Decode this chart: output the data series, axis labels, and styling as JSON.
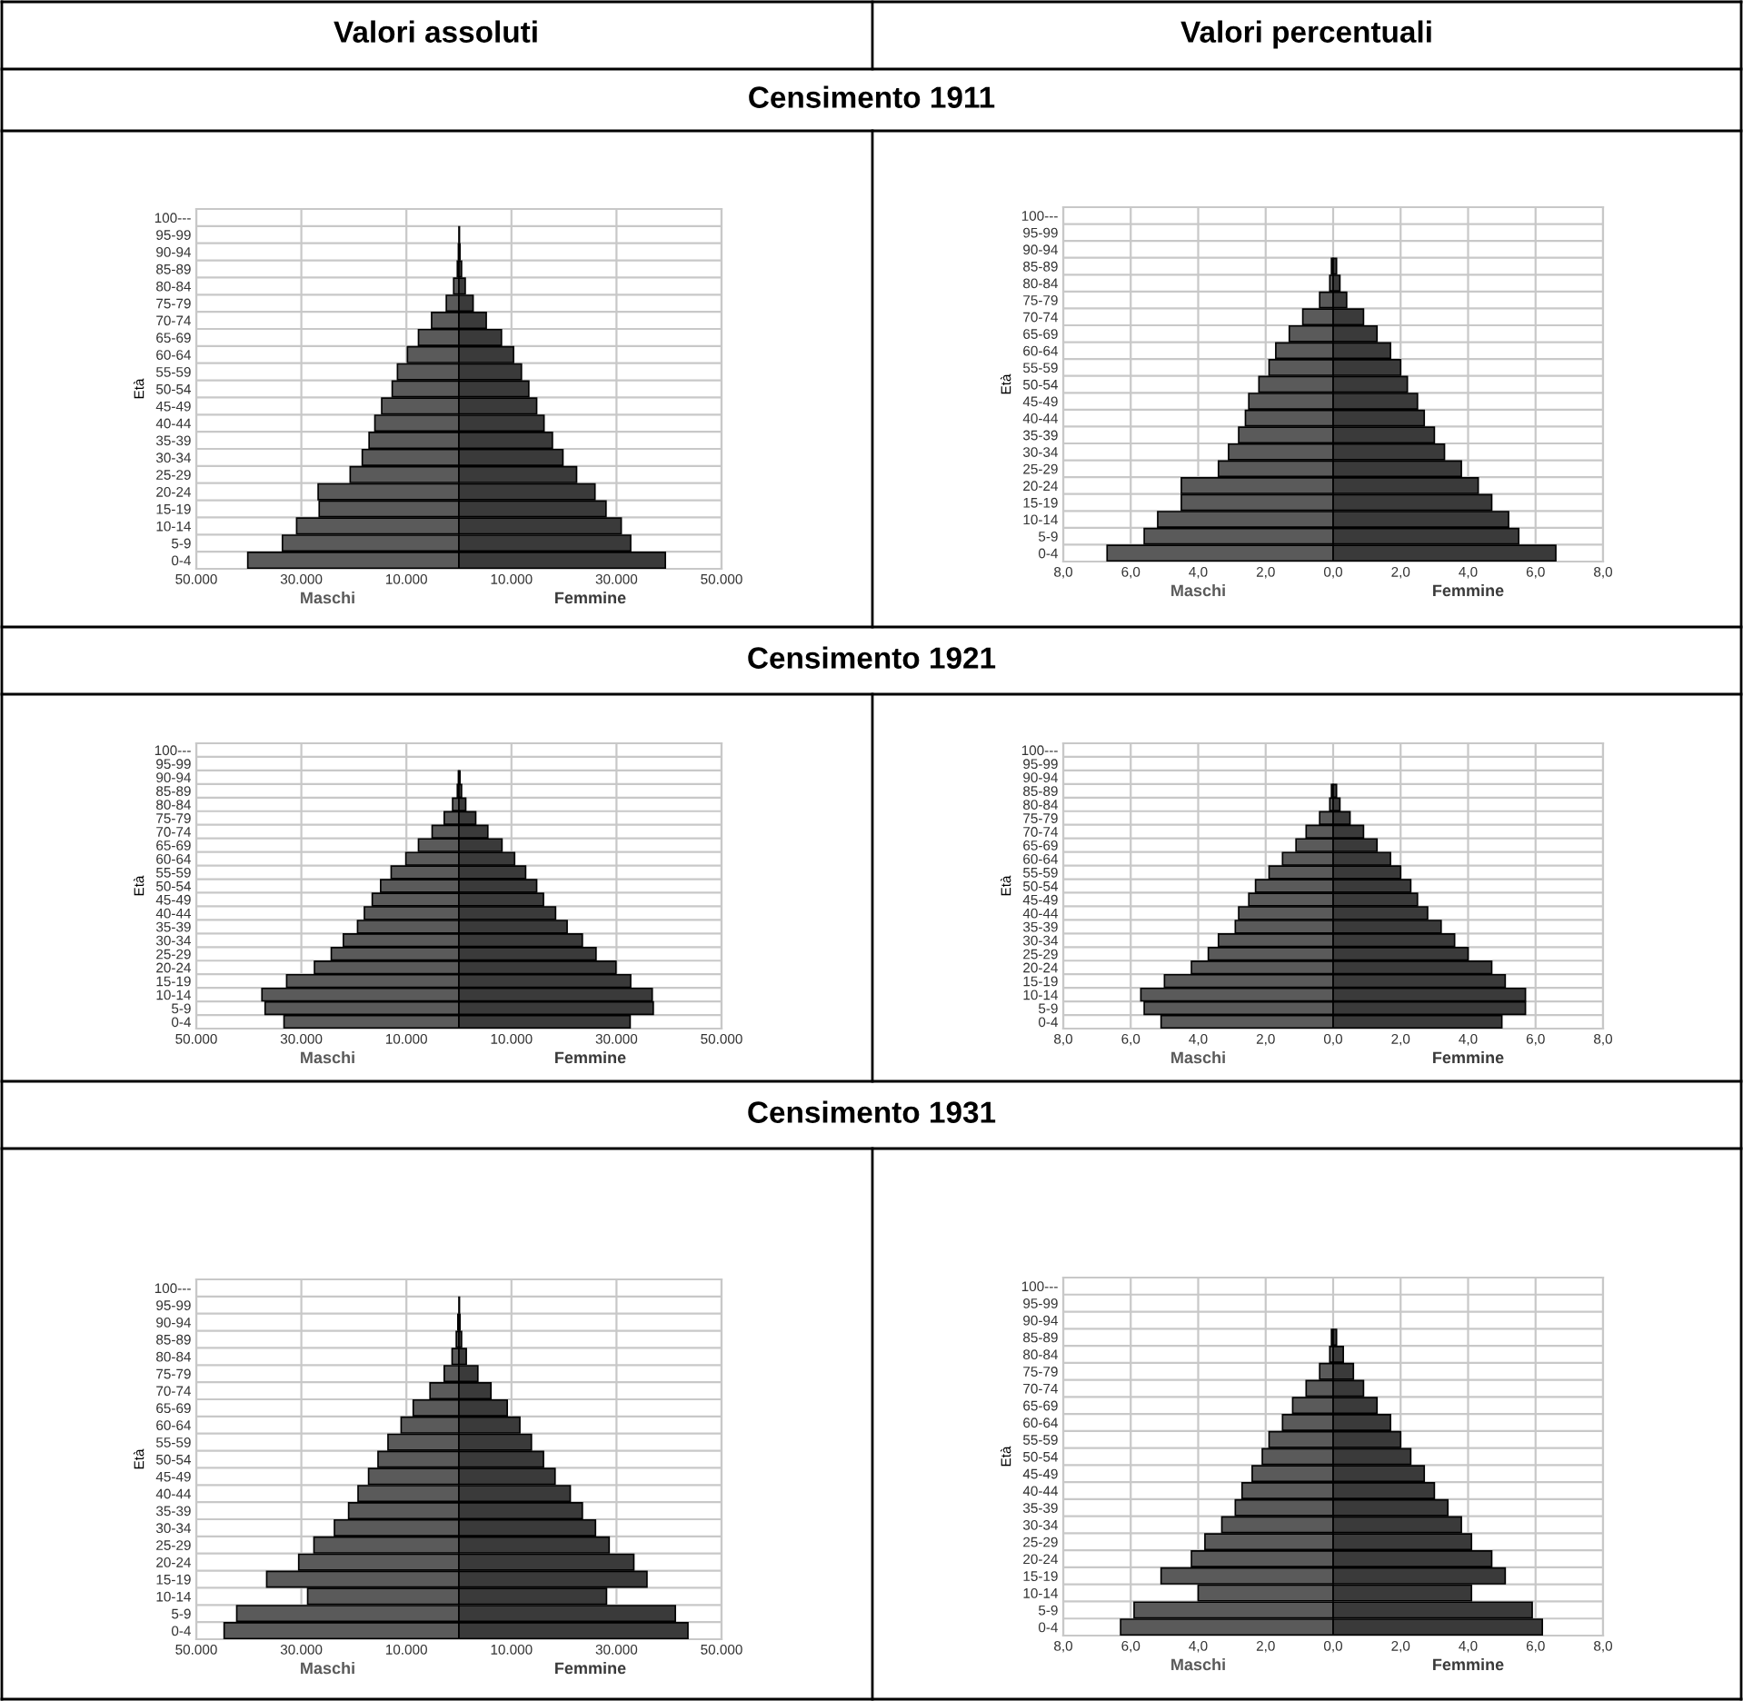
{
  "chart_data": [
    {
      "type": "bar",
      "orientation": "horizontal",
      "stacked": true,
      "subtitle": "Valori assoluti",
      "title": "Censimento 1911",
      "ylabel": "Età",
      "categories": [
        "100---",
        "95-99",
        "90-94",
        "85-89",
        "80-84",
        "75-79",
        "70-74",
        "65-69",
        "60-64",
        "55-59",
        "50-54",
        "45-49",
        "40-44",
        "35-39",
        "30-34",
        "25-29",
        "20-24",
        "15-19",
        "10-14",
        "5-9",
        "0-4"
      ],
      "series": [
        {
          "name": "Maschi",
          "color": "#5a5a5a",
          "values": [
            0,
            0,
            -100,
            -300,
            -1000,
            -2400,
            -5200,
            -7700,
            -9800,
            -11700,
            -12700,
            -14700,
            -16000,
            -17100,
            -18400,
            -20700,
            -26800,
            -26600,
            -30900,
            -33600,
            -40200
          ]
        },
        {
          "name": "Femmine",
          "color": "#3a3a3a",
          "values": [
            0,
            100,
            200,
            500,
            1200,
            2700,
            5200,
            8100,
            10400,
            11900,
            13300,
            14800,
            16200,
            17800,
            19800,
            22400,
            25900,
            28000,
            30900,
            32700,
            39300
          ]
        }
      ],
      "xlim": [
        -50000,
        50000
      ],
      "xticks": [
        {
          "value": -50000,
          "label": "50.000"
        },
        {
          "value": -30000,
          "label": "30.000"
        },
        {
          "value": -10000,
          "label": "10.000"
        },
        {
          "value": 10000,
          "label": "10.000"
        },
        {
          "value": 30000,
          "label": "30.000"
        },
        {
          "value": 50000,
          "label": "50.000"
        }
      ],
      "grid": true
    },
    {
      "type": "bar",
      "orientation": "horizontal",
      "stacked": true,
      "subtitle": "Valori percentuali",
      "ylabel": "Età",
      "categories": [
        "100---",
        "95-99",
        "90-94",
        "85-89",
        "80-84",
        "75-79",
        "70-74",
        "65-69",
        "60-64",
        "55-59",
        "50-54",
        "45-49",
        "40-44",
        "35-39",
        "30-34",
        "25-29",
        "20-24",
        "15-19",
        "10-14",
        "5-9",
        "0-4"
      ],
      "series": [
        {
          "name": "Maschi",
          "color": "#5a5a5a",
          "values": [
            0,
            0,
            0,
            -0.05,
            -0.1,
            -0.4,
            -0.9,
            -1.3,
            -1.7,
            -1.9,
            -2.2,
            -2.5,
            -2.6,
            -2.8,
            -3.1,
            -3.4,
            -4.5,
            -4.5,
            -5.2,
            -5.6,
            -6.7
          ]
        },
        {
          "name": "Femmine",
          "color": "#3a3a3a",
          "values": [
            0,
            0,
            0,
            0.1,
            0.2,
            0.4,
            0.9,
            1.3,
            1.7,
            2.0,
            2.2,
            2.5,
            2.7,
            3.0,
            3.3,
            3.8,
            4.3,
            4.7,
            5.2,
            5.5,
            6.6
          ]
        }
      ],
      "xlim": [
        -8,
        8
      ],
      "xticks": [
        {
          "value": -8,
          "label": "8,0"
        },
        {
          "value": -6,
          "label": "6,0"
        },
        {
          "value": -4,
          "label": "4,0"
        },
        {
          "value": -2,
          "label": "2,0"
        },
        {
          "value": 0,
          "label": "0,0"
        },
        {
          "value": 2,
          "label": "2,0"
        },
        {
          "value": 4,
          "label": "4,0"
        },
        {
          "value": 6,
          "label": "6,0"
        },
        {
          "value": 8,
          "label": "8,0"
        }
      ],
      "grid": true
    },
    {
      "type": "bar",
      "orientation": "horizontal",
      "stacked": true,
      "title": "Censimento 1921",
      "ylabel": "Età",
      "categories": [
        "100---",
        "95-99",
        "90-94",
        "85-89",
        "80-84",
        "75-79",
        "70-74",
        "65-69",
        "60-64",
        "55-59",
        "50-54",
        "45-49",
        "40-44",
        "35-39",
        "30-34",
        "25-29",
        "20-24",
        "15-19",
        "10-14",
        "5-9",
        "0-4"
      ],
      "series": [
        {
          "name": "Maschi",
          "color": "#5a5a5a",
          "values": [
            0,
            0,
            -100,
            -300,
            -1200,
            -2800,
            -5100,
            -7700,
            -10100,
            -12900,
            -14900,
            -16500,
            -18000,
            -19300,
            -22000,
            -24300,
            -27500,
            -32800,
            -37500,
            -36900,
            -33300
          ]
        },
        {
          "name": "Femmine",
          "color": "#3a3a3a",
          "values": [
            0,
            0,
            200,
            500,
            1300,
            3200,
            5500,
            8200,
            10600,
            12700,
            14800,
            16100,
            18400,
            20600,
            23500,
            26100,
            29900,
            32700,
            36800,
            37000,
            32600
          ]
        }
      ],
      "xlim": [
        -50000,
        50000
      ],
      "xticks": [
        {
          "value": -50000,
          "label": "50.000"
        },
        {
          "value": -30000,
          "label": "30.000"
        },
        {
          "value": -10000,
          "label": "10.000"
        },
        {
          "value": 10000,
          "label": "10.000"
        },
        {
          "value": 30000,
          "label": "30.000"
        },
        {
          "value": 50000,
          "label": "50.000"
        }
      ],
      "grid": true
    },
    {
      "type": "bar",
      "orientation": "horizontal",
      "stacked": true,
      "ylabel": "Età",
      "categories": [
        "100---",
        "95-99",
        "90-94",
        "85-89",
        "80-84",
        "75-79",
        "70-74",
        "65-69",
        "60-64",
        "55-59",
        "50-54",
        "45-49",
        "40-44",
        "35-39",
        "30-34",
        "25-29",
        "20-24",
        "15-19",
        "10-14",
        "5-9",
        "0-4"
      ],
      "series": [
        {
          "name": "Maschi",
          "color": "#5a5a5a",
          "values": [
            0,
            0,
            0,
            -0.05,
            -0.1,
            -0.4,
            -0.8,
            -1.1,
            -1.5,
            -1.9,
            -2.3,
            -2.5,
            -2.8,
            -2.9,
            -3.4,
            -3.7,
            -4.2,
            -5.0,
            -5.7,
            -5.6,
            -5.1
          ]
        },
        {
          "name": "Femmine",
          "color": "#3a3a3a",
          "values": [
            0,
            0,
            0,
            0.1,
            0.2,
            0.5,
            0.9,
            1.3,
            1.7,
            2.0,
            2.3,
            2.5,
            2.8,
            3.2,
            3.6,
            4.0,
            4.7,
            5.1,
            5.7,
            5.7,
            5.0
          ]
        }
      ],
      "xlim": [
        -8,
        8
      ],
      "xticks": [
        {
          "value": -8,
          "label": "8,0"
        },
        {
          "value": -6,
          "label": "6,0"
        },
        {
          "value": -4,
          "label": "4,0"
        },
        {
          "value": -2,
          "label": "2,0"
        },
        {
          "value": 0,
          "label": "0,0"
        },
        {
          "value": 2,
          "label": "2,0"
        },
        {
          "value": 4,
          "label": "4,0"
        },
        {
          "value": 6,
          "label": "6,0"
        },
        {
          "value": 8,
          "label": "8,0"
        }
      ],
      "grid": true
    },
    {
      "type": "bar",
      "orientation": "horizontal",
      "stacked": true,
      "title": "Censimento 1931",
      "ylabel": "Età",
      "categories": [
        "100---",
        "95-99",
        "90-94",
        "85-89",
        "80-84",
        "75-79",
        "70-74",
        "65-69",
        "60-64",
        "55-59",
        "50-54",
        "45-49",
        "40-44",
        "35-39",
        "30-34",
        "25-29",
        "20-24",
        "15-19",
        "10-14",
        "5-9",
        "0-4"
      ],
      "series": [
        {
          "name": "Maschi",
          "color": "#5a5a5a",
          "values": [
            0,
            null,
            -200,
            -500,
            -1300,
            -2800,
            -5500,
            -8700,
            -11000,
            -13500,
            -15400,
            -17200,
            -19200,
            -21000,
            -23700,
            -27600,
            -30500,
            -36600,
            -28800,
            -42300,
            -44700
          ]
        },
        {
          "name": "Femmine",
          "color": "#3a3a3a",
          "values": [
            0,
            100,
            200,
            500,
            1400,
            3600,
            6100,
            9200,
            11600,
            13800,
            16100,
            18300,
            21200,
            23500,
            26000,
            28600,
            33300,
            35800,
            28100,
            41200,
            43600
          ]
        }
      ],
      "xlim": [
        -50000,
        50000
      ],
      "xticks": [
        {
          "value": -50000,
          "label": "50.000"
        },
        {
          "value": -30000,
          "label": "30.000"
        },
        {
          "value": -10000,
          "label": "10.000"
        },
        {
          "value": 10000,
          "label": "10.000"
        },
        {
          "value": 30000,
          "label": "30.000"
        },
        {
          "value": 50000,
          "label": "50.000"
        }
      ],
      "grid": true
    },
    {
      "type": "bar",
      "orientation": "horizontal",
      "stacked": true,
      "ylabel": "Età",
      "categories": [
        "100---",
        "95-99",
        "90-94",
        "85-89",
        "80-84",
        "75-79",
        "70-74",
        "65-69",
        "60-64",
        "55-59",
        "50-54",
        "45-49",
        "40-44",
        "35-39",
        "30-34",
        "25-29",
        "20-24",
        "15-19",
        "10-14",
        "5-9",
        "0-4"
      ],
      "series": [
        {
          "name": "Maschi",
          "color": "#5a5a5a",
          "values": [
            0,
            0,
            0,
            -0.05,
            -0.1,
            -0.4,
            -0.8,
            -1.2,
            -1.5,
            -1.9,
            -2.1,
            -2.4,
            -2.7,
            -2.9,
            -3.3,
            -3.8,
            -4.2,
            -5.1,
            -4.0,
            -5.9,
            -6.3
          ]
        },
        {
          "name": "Femmine",
          "color": "#3a3a3a",
          "values": [
            0,
            0,
            0,
            0.1,
            0.3,
            0.6,
            0.9,
            1.3,
            1.7,
            2.0,
            2.3,
            2.7,
            3.0,
            3.4,
            3.8,
            4.1,
            4.7,
            5.1,
            4.1,
            5.9,
            6.2
          ]
        }
      ],
      "xlim": [
        -8,
        8
      ],
      "xticks": [
        {
          "value": -8,
          "label": "8,0"
        },
        {
          "value": -6,
          "label": "6,0"
        },
        {
          "value": -4,
          "label": "4,0"
        },
        {
          "value": -2,
          "label": "2,0"
        },
        {
          "value": 0,
          "label": "0,0"
        },
        {
          "value": 2,
          "label": "2,0"
        },
        {
          "value": 4,
          "label": "4,0"
        },
        {
          "value": 6,
          "label": "6,0"
        },
        {
          "value": 8,
          "label": "8,0"
        }
      ],
      "grid": true
    }
  ]
}
